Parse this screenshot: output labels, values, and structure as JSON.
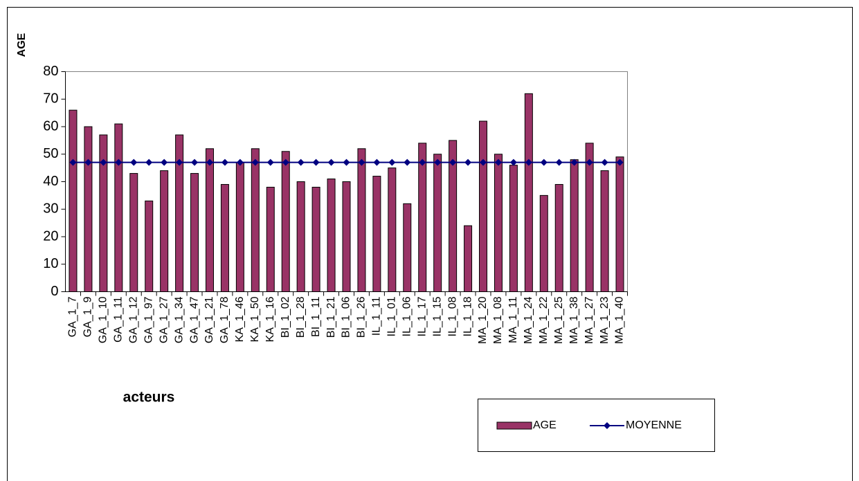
{
  "chart_data": {
    "type": "bar",
    "y_label": "AGE",
    "x_label": "acteurs",
    "categories": [
      "GA_1_7",
      "GA_1_9",
      "GA_1_10",
      "GA_1_11",
      "GA_1_12",
      "GA_1_97",
      "GA_1_27",
      "GA_1_34",
      "GA_1_47",
      "GA_1_21",
      "GA_1_78",
      "KA_1_46",
      "KA_1_50",
      "KA_1_16",
      "BI_1_02",
      "BI_1_28",
      "BI_1_11",
      "BI_1_21",
      "BI_1_06",
      "BI_1_26",
      "IL_1_11",
      "IL_1_01",
      "IL_1_06",
      "IL_1_17",
      "IL_1_15",
      "IL_1_08",
      "IL_1_18",
      "MA_1_20",
      "MA_1_08",
      "MA_1_11",
      "MA_1_24",
      "MA_1_22",
      "MA_1_25",
      "MA_1_38",
      "MA_1_27",
      "MA_1_23",
      "MA_1_40"
    ],
    "series": [
      {
        "name": "AGE",
        "type": "bar",
        "color": "#993366",
        "values": [
          66,
          60,
          57,
          61,
          43,
          33,
          44,
          57,
          43,
          52,
          39,
          47,
          52,
          38,
          51,
          40,
          38,
          41,
          40,
          52,
          42,
          45,
          32,
          54,
          50,
          55,
          24,
          62,
          50,
          46,
          72,
          35,
          39,
          48,
          54,
          44,
          49
        ]
      },
      {
        "name": "MOYENNE",
        "type": "line",
        "color": "#000080",
        "values": [
          47,
          47,
          47,
          47,
          47,
          47,
          47,
          47,
          47,
          47,
          47,
          47,
          47,
          47,
          47,
          47,
          47,
          47,
          47,
          47,
          47,
          47,
          47,
          47,
          47,
          47,
          47,
          47,
          47,
          47,
          47,
          47,
          47,
          47,
          47,
          47,
          47
        ]
      }
    ],
    "ylim": [
      0,
      80
    ],
    "yticks": [
      0,
      10,
      20,
      30,
      40,
      50,
      60,
      70,
      80
    ],
    "legend": "bottom-right"
  }
}
